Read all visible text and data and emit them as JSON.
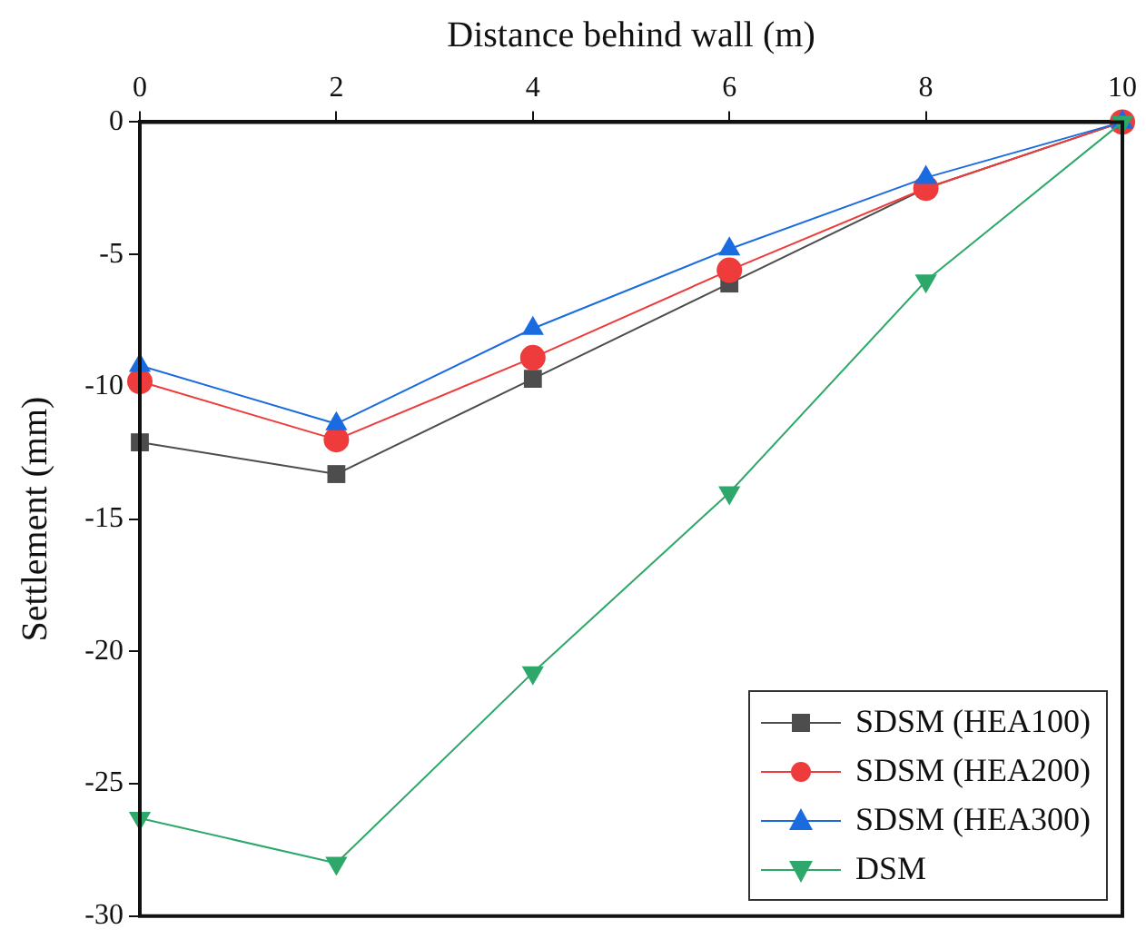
{
  "chart_data": {
    "type": "line",
    "xlabel": "Distance behind wall (m)",
    "ylabel": "Settlement (mm)",
    "x": [
      0,
      2,
      4,
      6,
      8,
      10
    ],
    "xlim": [
      0,
      10
    ],
    "xticks": [
      0,
      2,
      4,
      6,
      8,
      10
    ],
    "ylim": [
      -30,
      0
    ],
    "yticks": [
      -30,
      -25,
      -20,
      -15,
      -10,
      -5,
      0
    ],
    "grid": false,
    "legend": "bottom right",
    "series": [
      {
        "name": "SDSM (HEA100)",
        "color": "#4d4d4d",
        "marker": "square",
        "values": [
          -12.1,
          -13.3,
          -9.7,
          -6.1,
          -2.5,
          0
        ]
      },
      {
        "name": "SDSM (HEA200)",
        "color": "#ee3b3b",
        "marker": "circle",
        "values": [
          -9.8,
          -12.0,
          -8.9,
          -5.6,
          -2.5,
          0
        ]
      },
      {
        "name": "SDSM (HEA300)",
        "color": "#1a6ae0",
        "marker": "triangle",
        "values": [
          -9.2,
          -11.4,
          -7.8,
          -4.8,
          -2.1,
          0
        ]
      },
      {
        "name": "DSM",
        "color": "#2ea86a",
        "marker": "triangle-down",
        "values": [
          -26.3,
          -28.0,
          -20.8,
          -14.0,
          -6.0,
          0
        ]
      }
    ]
  }
}
